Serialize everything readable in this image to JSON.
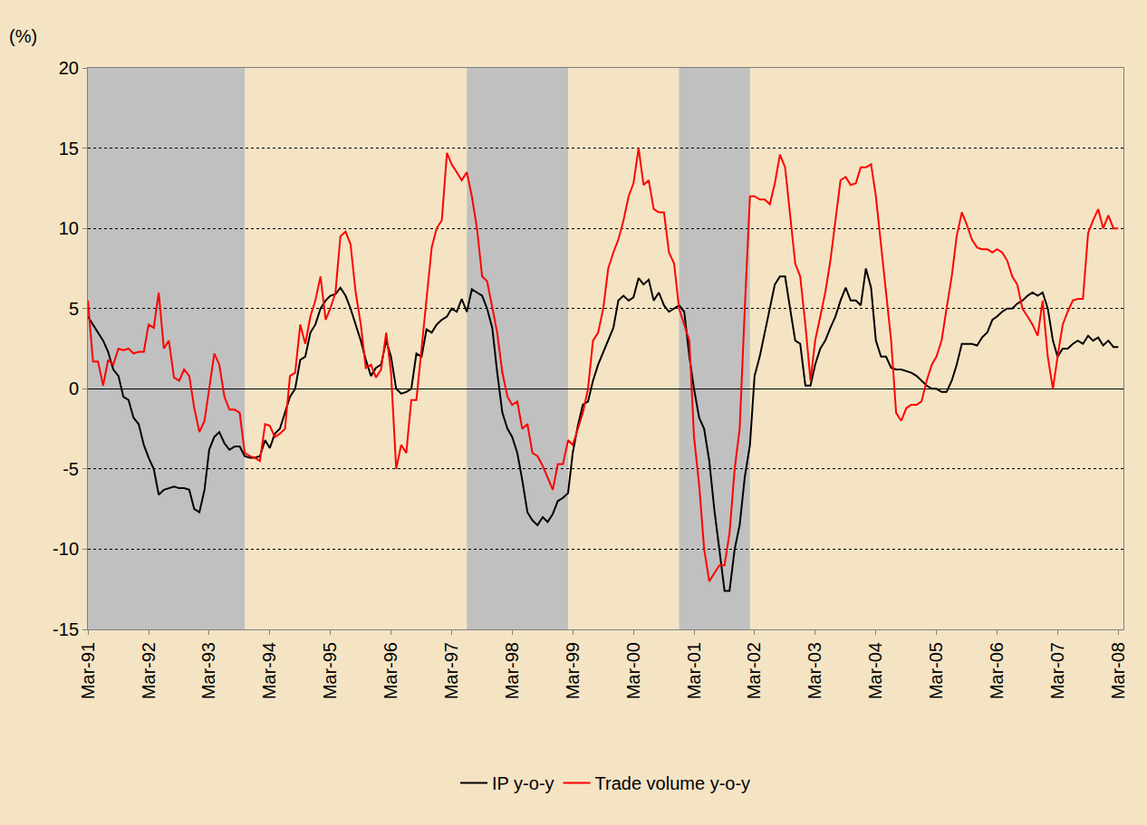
{
  "chart_data": {
    "type": "line",
    "ylabel": "(%)",
    "x": [
      "1991-03",
      "1991-04",
      "1991-05",
      "1991-06",
      "1991-07",
      "1991-08",
      "1991-09",
      "1991-10",
      "1991-11",
      "1991-12",
      "1992-01",
      "1992-02",
      "1992-03",
      "1992-04",
      "1992-05",
      "1992-06",
      "1992-07",
      "1992-08",
      "1992-09",
      "1992-10",
      "1992-11",
      "1992-12",
      "1993-01",
      "1993-02",
      "1993-03",
      "1993-04",
      "1993-05",
      "1993-06",
      "1993-07",
      "1993-08",
      "1993-09",
      "1993-10",
      "1993-11",
      "1993-12",
      "1994-01",
      "1994-02",
      "1994-03",
      "1994-04",
      "1994-05",
      "1994-06",
      "1994-07",
      "1994-08",
      "1994-09",
      "1994-10",
      "1994-11",
      "1994-12",
      "1995-01",
      "1995-02",
      "1995-03",
      "1995-04",
      "1995-05",
      "1995-06",
      "1995-07",
      "1995-08",
      "1995-09",
      "1995-10",
      "1995-11",
      "1995-12",
      "1996-01",
      "1996-02",
      "1996-03",
      "1996-04",
      "1996-05",
      "1996-06",
      "1996-07",
      "1996-08",
      "1996-09",
      "1996-10",
      "1996-11",
      "1996-12",
      "1997-01",
      "1997-02",
      "1997-03",
      "1997-04",
      "1997-05",
      "1997-06",
      "1997-07",
      "1997-08",
      "1997-09",
      "1997-10",
      "1997-11",
      "1997-12",
      "1998-01",
      "1998-02",
      "1998-03",
      "1998-04",
      "1998-05",
      "1998-06",
      "1998-07",
      "1998-08",
      "1998-09",
      "1998-10",
      "1998-11",
      "1998-12",
      "1999-01",
      "1999-02",
      "1999-03",
      "1999-04",
      "1999-05",
      "1999-06",
      "1999-07",
      "1999-08",
      "1999-09",
      "1999-10",
      "1999-11",
      "1999-12",
      "2000-01",
      "2000-02",
      "2000-03",
      "2000-04",
      "2000-05",
      "2000-06",
      "2000-07",
      "2000-08",
      "2000-09",
      "2000-10",
      "2000-11",
      "2000-12",
      "2001-01",
      "2001-02",
      "2001-03",
      "2001-04",
      "2001-05",
      "2001-06",
      "2001-07",
      "2001-08",
      "2001-09",
      "2001-10",
      "2001-11",
      "2001-12",
      "2002-01",
      "2002-02",
      "2002-03",
      "2002-04",
      "2002-05",
      "2002-06",
      "2002-07",
      "2002-08",
      "2002-09",
      "2002-10",
      "2002-11",
      "2002-12",
      "2003-01",
      "2003-02",
      "2003-03",
      "2003-04",
      "2003-05",
      "2003-06",
      "2003-07",
      "2003-08",
      "2003-09",
      "2003-10",
      "2003-11",
      "2003-12",
      "2004-01",
      "2004-02",
      "2004-03",
      "2004-04",
      "2004-05",
      "2004-06",
      "2004-07",
      "2004-08",
      "2004-09",
      "2004-10",
      "2004-11",
      "2004-12",
      "2005-01",
      "2005-02",
      "2005-03",
      "2005-04",
      "2005-05",
      "2005-06",
      "2005-07",
      "2005-08",
      "2005-09",
      "2005-10",
      "2005-11",
      "2005-12",
      "2006-01",
      "2006-02",
      "2006-03",
      "2006-04",
      "2006-05",
      "2006-06",
      "2006-07",
      "2006-08",
      "2006-09",
      "2006-10",
      "2006-11",
      "2006-12",
      "2007-01",
      "2007-02",
      "2007-03",
      "2007-04",
      "2007-05",
      "2007-06",
      "2007-07",
      "2007-08",
      "2007-09",
      "2007-10",
      "2007-11",
      "2007-12",
      "2008-01",
      "2008-02",
      "2008-03"
    ],
    "series": [
      {
        "name": "IP y-o-y",
        "color": "#000000",
        "values": [
          4.5,
          4,
          3.5,
          3,
          2.3,
          1.2,
          0.8,
          -0.5,
          -0.7,
          -1.8,
          -2.2,
          -3.5,
          -4.3,
          -5,
          -6.6,
          -6.3,
          -6.2,
          -6.1,
          -6.2,
          -6.2,
          -6.3,
          -7.5,
          -7.7,
          -6.3,
          -3.8,
          -3,
          -2.7,
          -3.4,
          -3.8,
          -3.6,
          -3.6,
          -4.2,
          -4.3,
          -4.3,
          -4.2,
          -3.2,
          -3.7,
          -2.8,
          -2.5,
          -1.5,
          -0.5,
          0,
          1.8,
          2,
          3.5,
          4,
          5,
          5.5,
          5.8,
          5.9,
          6.3,
          5.8,
          5,
          4,
          3,
          1.8,
          0.8,
          1.3,
          1.5,
          3,
          2,
          0,
          -0.3,
          -0.2,
          0,
          2.2,
          2,
          3.7,
          3.5,
          4,
          4.3,
          4.5,
          5,
          4.8,
          5.6,
          4.8,
          6.2,
          6,
          5.8,
          5,
          3.8,
          1,
          -1.5,
          -2.5,
          -3,
          -4,
          -5.7,
          -7.7,
          -8.2,
          -8.5,
          -8,
          -8.3,
          -7.8,
          -7,
          -6.8,
          -6.5,
          -4,
          -2.3,
          -1,
          -0.8,
          0.5,
          1.5,
          2.3,
          3,
          3.8,
          5.5,
          5.8,
          5.5,
          5.7,
          6.9,
          6.5,
          6.8,
          5.5,
          6,
          5.2,
          4.8,
          5,
          5.2,
          4.8,
          2,
          0,
          -1.8,
          -2.5,
          -4.5,
          -7.5,
          -10,
          -12.6,
          -12.6,
          -10,
          -8.5,
          -5.5,
          -3.5,
          0.8,
          2,
          3.5,
          5,
          6.5,
          7,
          7,
          5,
          3,
          2.8,
          0.2,
          0.2,
          1.5,
          2.5,
          3,
          3.8,
          4.5,
          5.5,
          6.3,
          5.5,
          5.5,
          5.2,
          7.5,
          6.3,
          3,
          2,
          2,
          1.3,
          1.2,
          1.2,
          1.1,
          1,
          0.8,
          0.5,
          0.2,
          0,
          0,
          -0.2,
          -0.2,
          0.5,
          1.5,
          2.8,
          2.8,
          2.8,
          2.7,
          3.2,
          3.5,
          4.3,
          4.5,
          4.8,
          5,
          5,
          5.3,
          5.5,
          5.8,
          6,
          5.8,
          6,
          5,
          3,
          2,
          2.5,
          2.5,
          2.8,
          3,
          2.8,
          3.3,
          3,
          3.2,
          2.7,
          3,
          2.6,
          2.6
        ]
      },
      {
        "name": "Trade volume y-o-y",
        "color": "#ff0000",
        "values": [
          5.5,
          1.7,
          1.7,
          0.2,
          1.8,
          1.5,
          2.5,
          2.4,
          2.5,
          2.2,
          2.3,
          2.3,
          4,
          3.8,
          6,
          2.5,
          3,
          0.7,
          0.5,
          1.2,
          0.8,
          -1.2,
          -2.7,
          -2,
          0,
          2.2,
          1.5,
          -0.5,
          -1.3,
          -1.3,
          -1.5,
          -4,
          -4.2,
          -4.3,
          -4.5,
          -2.2,
          -2.3,
          -3,
          -2.8,
          -2.5,
          0.8,
          1,
          4,
          2.8,
          4.5,
          5.5,
          7,
          4.3,
          5,
          6,
          9.5,
          9.8,
          9,
          6,
          4,
          1.3,
          1.5,
          0.7,
          1.2,
          3.5,
          1,
          -5,
          -3.5,
          -4,
          -0.7,
          -0.7,
          2.5,
          5.5,
          8.8,
          10,
          10.5,
          14.7,
          14,
          13.5,
          13,
          13.5,
          12,
          10,
          7,
          6.7,
          5,
          3.5,
          1,
          -0.5,
          -1,
          -0.8,
          -2.5,
          -2.2,
          -4,
          -4.2,
          -4.8,
          -5.5,
          -6.3,
          -4.7,
          -4.7,
          -3.2,
          -3.5,
          -2.5,
          -1.5,
          0,
          3,
          3.5,
          5,
          7.5,
          8.5,
          9.3,
          10.5,
          12,
          12.8,
          15,
          12.7,
          13,
          11.2,
          11,
          11,
          8.5,
          7.8,
          5,
          4,
          3,
          -3,
          -6,
          -10,
          -12,
          -11.5,
          -11,
          -11,
          -9,
          -5,
          -2.5,
          5,
          12,
          12,
          11.8,
          11.8,
          11.5,
          12.8,
          14.6,
          13.8,
          11,
          7.8,
          7,
          4,
          0.5,
          3,
          4.5,
          6,
          8,
          10.5,
          13,
          13.2,
          12.7,
          12.8,
          13.8,
          13.8,
          14,
          12,
          9,
          6,
          3,
          -1.5,
          -2,
          -1.2,
          -1,
          -1,
          -0.8,
          0.5,
          1.5,
          2,
          3,
          5,
          7,
          9.5,
          11,
          10.2,
          9.3,
          8.8,
          8.7,
          8.7,
          8.5,
          8.7,
          8.5,
          8,
          7,
          6.5,
          5,
          4.5,
          4,
          3.3,
          5.5,
          2,
          0,
          2,
          4,
          4.8,
          5.5,
          5.6,
          5.6,
          9.7,
          10.5,
          11.2,
          10,
          10.8,
          10,
          10
        ]
      }
    ],
    "shaded_periods": [
      {
        "start": "1991-03",
        "end": "1993-10"
      },
      {
        "start": "1997-06",
        "end": "1999-02"
      },
      {
        "start": "2000-12",
        "end": "2002-02"
      }
    ],
    "xlim": [
      "1991-03",
      "2008-04"
    ],
    "xticks": [
      {
        "value": "1991-03",
        "label": "Mar-91"
      },
      {
        "value": "1992-03",
        "label": "Mar-92"
      },
      {
        "value": "1993-03",
        "label": "Mar-93"
      },
      {
        "value": "1994-03",
        "label": "Mar-94"
      },
      {
        "value": "1995-03",
        "label": "Mar-95"
      },
      {
        "value": "1996-03",
        "label": "Mar-96"
      },
      {
        "value": "1997-03",
        "label": "Mar-97"
      },
      {
        "value": "1998-03",
        "label": "Mar-98"
      },
      {
        "value": "1999-03",
        "label": "Mar-99"
      },
      {
        "value": "2000-03",
        "label": "Mar-00"
      },
      {
        "value": "2001-03",
        "label": "Mar-01"
      },
      {
        "value": "2002-03",
        "label": "Mar-02"
      },
      {
        "value": "2003-03",
        "label": "Mar-03"
      },
      {
        "value": "2004-03",
        "label": "Mar-04"
      },
      {
        "value": "2005-03",
        "label": "Mar-05"
      },
      {
        "value": "2006-03",
        "label": "Mar-06"
      },
      {
        "value": "2007-03",
        "label": "Mar-07"
      },
      {
        "value": "2008-03",
        "label": "Mar-08"
      }
    ],
    "ylim": [
      -15,
      20
    ],
    "yticks": [
      -15,
      -10,
      -5,
      0,
      5,
      10,
      15,
      20
    ],
    "grid": true,
    "legend": "bottom"
  }
}
